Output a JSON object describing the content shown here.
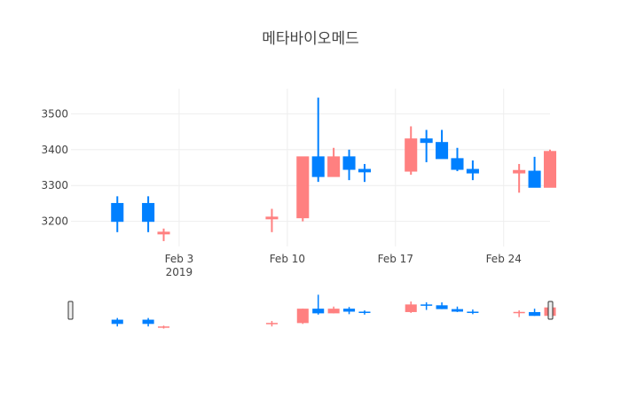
{
  "chart_data": {
    "type": "candlestick",
    "title": "메타바이오메드",
    "xlabel": "",
    "ylabel": "",
    "x_range": [
      "2019-01-27T00:00:00",
      "2019-02-27T00:00:00"
    ],
    "ylim": [
      3130,
      3570
    ],
    "y_ticks": [
      3200,
      3300,
      3400,
      3500
    ],
    "x_ticks": [
      {
        "date": "2019-02-03",
        "label": "Feb 3",
        "sublabel": "2019"
      },
      {
        "date": "2019-02-10",
        "label": "Feb 10",
        "sublabel": ""
      },
      {
        "date": "2019-02-17",
        "label": "Feb 17",
        "sublabel": ""
      },
      {
        "date": "2019-02-24",
        "label": "Feb 24",
        "sublabel": ""
      }
    ],
    "grid": true,
    "rangeslider": true,
    "colors": {
      "increasing": "#ff8080",
      "decreasing": "#0080ff"
    },
    "candles": [
      {
        "date": "2019-01-30",
        "open": 3250,
        "high": 3270,
        "low": 3170,
        "close": 3200
      },
      {
        "date": "2019-02-01",
        "open": 3250,
        "high": 3270,
        "low": 3170,
        "close": 3200
      },
      {
        "date": "2019-02-02",
        "open": 3165,
        "high": 3180,
        "low": 3145,
        "close": 3170
      },
      {
        "date": "2019-02-09",
        "open": 3210,
        "high": 3235,
        "low": 3170,
        "close": 3212
      },
      {
        "date": "2019-02-11",
        "open": 3210,
        "high": 3380,
        "low": 3200,
        "close": 3380
      },
      {
        "date": "2019-02-12",
        "open": 3380,
        "high": 3545,
        "low": 3310,
        "close": 3325
      },
      {
        "date": "2019-02-13",
        "open": 3325,
        "high": 3405,
        "low": 3325,
        "close": 3380
      },
      {
        "date": "2019-02-14",
        "open": 3380,
        "high": 3400,
        "low": 3315,
        "close": 3345
      },
      {
        "date": "2019-02-15",
        "open": 3345,
        "high": 3360,
        "low": 3310,
        "close": 3338
      },
      {
        "date": "2019-02-18",
        "open": 3340,
        "high": 3465,
        "low": 3330,
        "close": 3430
      },
      {
        "date": "2019-02-19",
        "open": 3430,
        "high": 3455,
        "low": 3365,
        "close": 3420
      },
      {
        "date": "2019-02-20",
        "open": 3420,
        "high": 3455,
        "low": 3375,
        "close": 3375
      },
      {
        "date": "2019-02-21",
        "open": 3375,
        "high": 3405,
        "low": 3340,
        "close": 3345
      },
      {
        "date": "2019-02-22",
        "open": 3345,
        "high": 3370,
        "low": 3315,
        "close": 3335
      },
      {
        "date": "2019-02-25",
        "open": 3335,
        "high": 3360,
        "low": 3280,
        "close": 3342
      },
      {
        "date": "2019-02-26",
        "open": 3340,
        "high": 3380,
        "low": 3295,
        "close": 3295
      },
      {
        "date": "2019-02-27",
        "open": 3295,
        "high": 3400,
        "low": 3295,
        "close": 3395
      }
    ]
  }
}
